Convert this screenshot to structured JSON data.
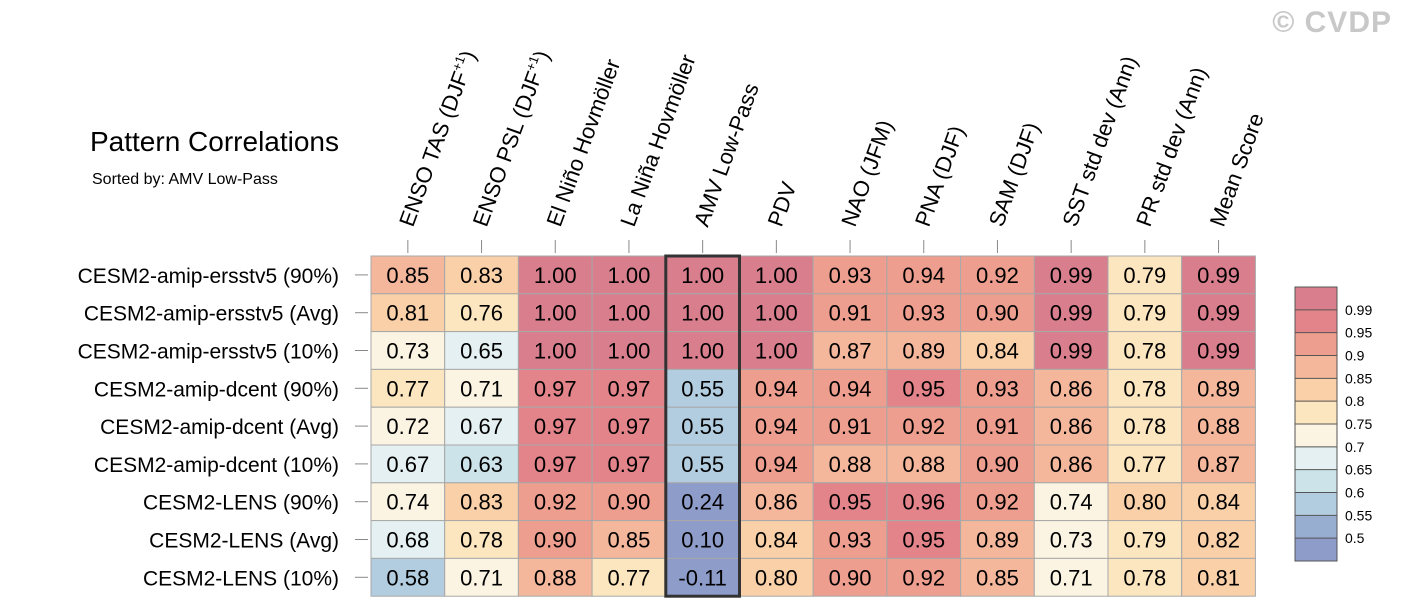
{
  "watermark": "© CVDP",
  "chart_data": {
    "type": "heatmap",
    "title": "Pattern Correlations",
    "subtitle": "Sorted by: AMV Low-Pass",
    "highlight_column": "AMV Low-Pass",
    "columns": [
      {
        "main": "ENSO TAS (DJF",
        "sup": "+1",
        "tail": ")"
      },
      {
        "main": "ENSO PSL (DJF",
        "sup": "+1",
        "tail": ")"
      },
      {
        "main": "El Niño Hovmöller",
        "sup": "",
        "tail": ""
      },
      {
        "main": "La Niña Hovmöller",
        "sup": "",
        "tail": ""
      },
      {
        "main": "AMV Low-Pass",
        "sup": "",
        "tail": ""
      },
      {
        "main": "PDV",
        "sup": "",
        "tail": ""
      },
      {
        "main": "NAO (JFM)",
        "sup": "",
        "tail": ""
      },
      {
        "main": "PNA (DJF)",
        "sup": "",
        "tail": ""
      },
      {
        "main": "SAM (DJF)",
        "sup": "",
        "tail": ""
      },
      {
        "main": "SST std dev (Ann)",
        "sup": "",
        "tail": ""
      },
      {
        "main": "PR std dev (Ann)",
        "sup": "",
        "tail": ""
      },
      {
        "main": "Mean Score",
        "sup": "",
        "tail": ""
      }
    ],
    "rows": [
      "CESM2-amip-ersstv5 (90%)",
      "CESM2-amip-ersstv5 (Avg)",
      "CESM2-amip-ersstv5 (10%)",
      "CESM2-amip-dcent (90%)",
      "CESM2-amip-dcent (Avg)",
      "CESM2-amip-dcent (10%)",
      "CESM2-LENS (90%)",
      "CESM2-LENS (Avg)",
      "CESM2-LENS (10%)"
    ],
    "values": [
      [
        "0.85",
        "0.83",
        "1.00",
        "1.00",
        "1.00",
        "1.00",
        "0.93",
        "0.94",
        "0.92",
        "0.99",
        "0.79",
        "0.99"
      ],
      [
        "0.81",
        "0.76",
        "1.00",
        "1.00",
        "1.00",
        "1.00",
        "0.91",
        "0.93",
        "0.90",
        "0.99",
        "0.79",
        "0.99"
      ],
      [
        "0.73",
        "0.65",
        "1.00",
        "1.00",
        "1.00",
        "1.00",
        "0.87",
        "0.89",
        "0.84",
        "0.99",
        "0.78",
        "0.99"
      ],
      [
        "0.77",
        "0.71",
        "0.97",
        "0.97",
        "0.55",
        "0.94",
        "0.94",
        "0.95",
        "0.93",
        "0.86",
        "0.78",
        "0.89"
      ],
      [
        "0.72",
        "0.67",
        "0.97",
        "0.97",
        "0.55",
        "0.94",
        "0.91",
        "0.92",
        "0.91",
        "0.86",
        "0.78",
        "0.88"
      ],
      [
        "0.67",
        "0.63",
        "0.97",
        "0.97",
        "0.55",
        "0.94",
        "0.88",
        "0.88",
        "0.90",
        "0.86",
        "0.77",
        "0.87"
      ],
      [
        "0.74",
        "0.83",
        "0.92",
        "0.90",
        "0.24",
        "0.86",
        "0.95",
        "0.96",
        "0.92",
        "0.74",
        "0.80",
        "0.84"
      ],
      [
        "0.68",
        "0.78",
        "0.90",
        "0.85",
        "0.10",
        "0.84",
        "0.93",
        "0.95",
        "0.89",
        "0.73",
        "0.79",
        "0.82"
      ],
      [
        "0.58",
        "0.71",
        "0.88",
        "0.77",
        "-0.11",
        "0.80",
        "0.90",
        "0.92",
        "0.85",
        "0.71",
        "0.78",
        "0.81"
      ]
    ],
    "colorbar": {
      "levels": [
        "0.99",
        "0.95",
        "0.9",
        "0.85",
        "0.8",
        "0.75",
        "0.7",
        "0.65",
        "0.6",
        "0.55",
        "0.5"
      ],
      "thresholds": [
        0.99,
        0.95,
        0.9,
        0.85,
        0.8,
        0.75,
        0.7,
        0.65,
        0.6,
        0.55,
        0.5
      ],
      "colors": [
        "#d87e8d",
        "#e2848a",
        "#ee9e8e",
        "#f4b79c",
        "#f9d0a8",
        "#fce6bf",
        "#fbf4e2",
        "#e4f0f1",
        "#cce3ea",
        "#b2cde0",
        "#98aed1",
        "#8e9cca"
      ]
    }
  }
}
